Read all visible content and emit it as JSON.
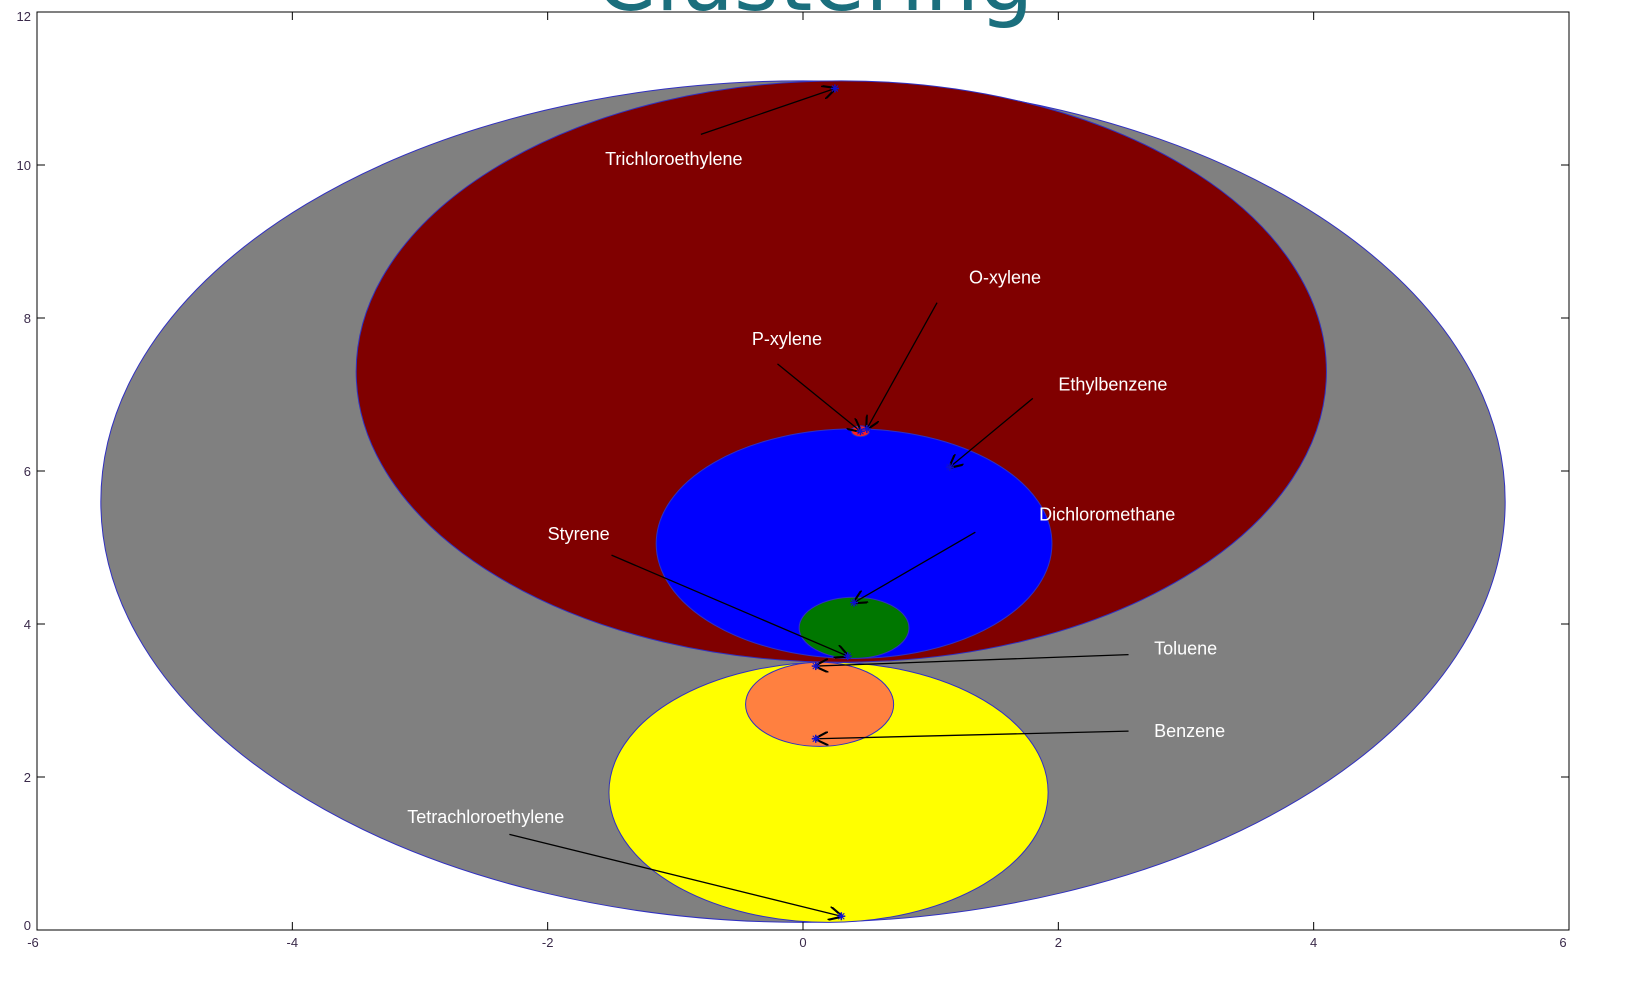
{
  "title": "Clustering",
  "colors": {
    "axes_frame": "#000000",
    "ellipse_edge": "#3030c0",
    "marker": "#1010d0",
    "arrow": "#000000",
    "label_text": "#ffffff",
    "title": "#1b6f7d"
  },
  "chart_data": {
    "type": "scatter",
    "title": "Clustering",
    "xlabel": "",
    "ylabel": "",
    "xlim": [
      -6,
      6
    ],
    "ylim": [
      0,
      12
    ],
    "grid": false,
    "xticks": [
      "-6",
      "-4",
      "-2",
      "0",
      "2",
      "4",
      "6"
    ],
    "yticks": [
      "0",
      "2",
      "4",
      "6",
      "8",
      "10",
      "12"
    ],
    "clusters": [
      {
        "name": "outer",
        "cx": 0.0,
        "cy": 5.6,
        "rx": 5.5,
        "ry": 5.5,
        "color": "#808080"
      },
      {
        "name": "upper",
        "cx": 0.3,
        "cy": 7.3,
        "rx": 3.8,
        "ry": 3.8,
        "color": "#800000"
      },
      {
        "name": "blue",
        "cx": 0.4,
        "cy": 5.05,
        "rx": 1.55,
        "ry": 1.5,
        "color": "#0000ff"
      },
      {
        "name": "green",
        "cx": 0.4,
        "cy": 3.95,
        "rx": 0.43,
        "ry": 0.4,
        "color": "#007700"
      },
      {
        "name": "lower",
        "cx": 0.2,
        "cy": 1.8,
        "rx": 1.72,
        "ry": 1.7,
        "color": "#ffff00"
      },
      {
        "name": "orange",
        "cx": 0.13,
        "cy": 2.95,
        "rx": 0.58,
        "ry": 0.55,
        "color": "#ff8040"
      },
      {
        "name": "red",
        "cx": 0.45,
        "cy": 6.52,
        "rx": 0.07,
        "ry": 0.07,
        "color": "#ff2020"
      }
    ],
    "points": [
      {
        "name": "Trichloroethylene",
        "x": 0.25,
        "y": 11.0,
        "label_x": -1.55,
        "label_y": 10.0,
        "text_x": -0.8,
        "text_y": 10.4
      },
      {
        "name": "O-xylene",
        "x": 0.5,
        "y": 6.55,
        "label_x": 1.3,
        "label_y": 8.45,
        "text_x": 1.05,
        "text_y": 8.2
      },
      {
        "name": "P-xylene",
        "x": 0.45,
        "y": 6.52,
        "label_x": -0.4,
        "label_y": 7.65,
        "text_x": -0.2,
        "text_y": 7.4
      },
      {
        "name": "Ethylbenzene",
        "x": 1.15,
        "y": 6.05,
        "label_x": 2.0,
        "label_y": 7.05,
        "text_x": 1.8,
        "text_y": 6.95
      },
      {
        "name": "Dichloromethane",
        "x": 0.4,
        "y": 4.28,
        "label_x": 1.85,
        "label_y": 5.35,
        "text_x": 1.35,
        "text_y": 5.2
      },
      {
        "name": "Styrene",
        "x": 0.35,
        "y": 3.58,
        "label_x": -2.0,
        "label_y": 5.1,
        "text_x": -1.5,
        "text_y": 4.9
      },
      {
        "name": "Toluene",
        "x": 0.1,
        "y": 3.45,
        "label_x": 2.75,
        "label_y": 3.6,
        "text_x": 2.55,
        "text_y": 3.6
      },
      {
        "name": "Benzene",
        "x": 0.1,
        "y": 2.5,
        "label_x": 2.75,
        "label_y": 2.52,
        "text_x": 2.55,
        "text_y": 2.6
      },
      {
        "name": "Tetrachloroethylene",
        "x": 0.3,
        "y": 0.18,
        "label_x": -3.1,
        "label_y": 1.4,
        "text_x": -2.3,
        "text_y": 1.25
      }
    ]
  }
}
